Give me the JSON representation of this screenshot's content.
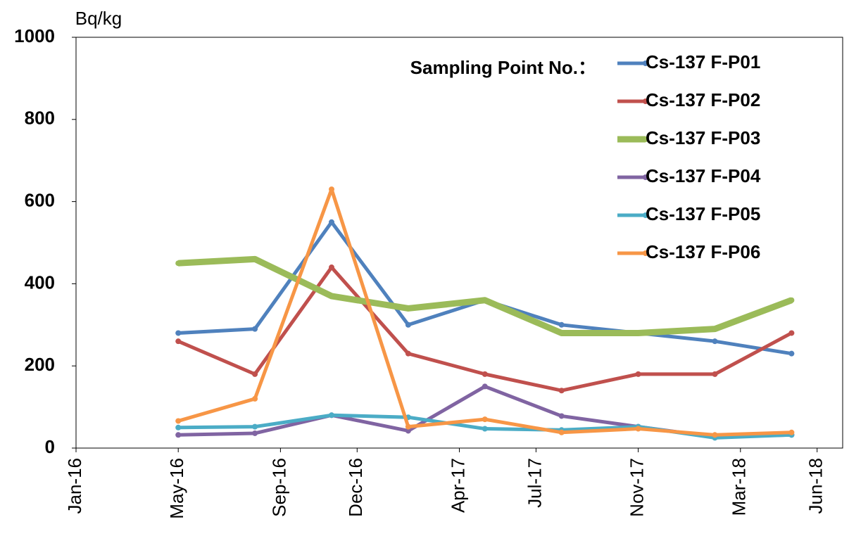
{
  "chart_data": {
    "type": "line",
    "y_axis_label": "Bq/kg",
    "legend_title": "Sampling Point No.：",
    "legend": "top-right",
    "x": [
      "2016-05",
      "2016-08",
      "2016-11",
      "2017-02",
      "2017-05",
      "2017-08",
      "2017-11",
      "2018-02",
      "2018-05"
    ],
    "xlim": [
      "2016-01",
      "2018-07"
    ],
    "xticks": [
      {
        "value": "2016-01",
        "label": "Jan-16"
      },
      {
        "value": "2016-05",
        "label": "May-16"
      },
      {
        "value": "2016-09",
        "label": "Sep-16"
      },
      {
        "value": "2016-12",
        "label": "Dec-16"
      },
      {
        "value": "2017-04",
        "label": "Apr-17"
      },
      {
        "value": "2017-07",
        "label": "Jul-17"
      },
      {
        "value": "2017-11",
        "label": "Nov-17"
      },
      {
        "value": "2018-03",
        "label": "Mar-18"
      },
      {
        "value": "2018-06",
        "label": "Jun-18"
      }
    ],
    "ylim": [
      0,
      1000
    ],
    "yticks": [
      0,
      200,
      400,
      600,
      800,
      1000
    ],
    "grid": false,
    "series": [
      {
        "name": "Cs-137 F-P01",
        "color": "#4f81bd",
        "line_width": 5,
        "values": [
          280,
          290,
          550,
          300,
          360,
          300,
          280,
          260,
          230
        ]
      },
      {
        "name": "Cs-137 F-P02",
        "color": "#c0504d",
        "line_width": 5,
        "values": [
          260,
          180,
          440,
          230,
          180,
          140,
          180,
          180,
          280
        ]
      },
      {
        "name": "Cs-137 F-P03",
        "color": "#9bbb59",
        "line_width": 9,
        "values": [
          450,
          460,
          370,
          340,
          360,
          280,
          280,
          290,
          360
        ]
      },
      {
        "name": "Cs-137 F-P04",
        "color": "#8064a2",
        "line_width": 5,
        "values": [
          32,
          36,
          80,
          42,
          150,
          78,
          52,
          27,
          32
        ]
      },
      {
        "name": "Cs-137 F-P05",
        "color": "#4bacc6",
        "line_width": 5,
        "values": [
          50,
          52,
          80,
          75,
          47,
          44,
          52,
          25,
          32
        ]
      },
      {
        "name": "Cs-137 F-P06",
        "color": "#f79646",
        "line_width": 5,
        "values": [
          66,
          120,
          630,
          52,
          70,
          38,
          47,
          32,
          38
        ]
      }
    ]
  }
}
